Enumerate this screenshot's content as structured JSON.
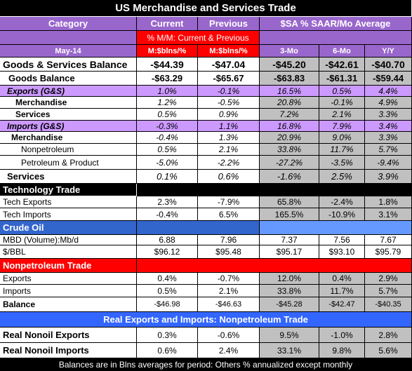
{
  "title": "US Merchandise and Services Trade",
  "header": {
    "category": "Category",
    "current": "Current",
    "previous": "Previous",
    "average": "$SA % SAAR/Mo Average",
    "mom": "% M/M: Current & Previous",
    "period": "May-14",
    "units": [
      "M:$blns/%",
      "M:$blns/%"
    ],
    "averages": [
      "3-Mo",
      "6-Mo",
      "Y/Y"
    ]
  },
  "sections": [
    {
      "rows": [
        [
          "Goods & Services Balance",
          "-$44.39",
          "-$47.04",
          "-$45.20",
          "-$42.61",
          "-$40.70"
        ],
        [
          "Goods Balance",
          "-$63.29",
          "-$65.67",
          "-$63.83",
          "-$61.31",
          "-$59.44"
        ],
        [
          "Exports (G&S)",
          "1.0%",
          "-0.1%",
          "16.5%",
          "0.5%",
          "4.4%"
        ],
        [
          "Merchandise",
          "1.2%",
          "-0.5%",
          "20.8%",
          "-0.1%",
          "4.9%"
        ],
        [
          "Services",
          "0.5%",
          "0.9%",
          "7.2%",
          "2.1%",
          "3.3%"
        ],
        [
          "Imports (G&S)",
          "-0.3%",
          "1.1%",
          "16.8%",
          "7.9%",
          "3.4%"
        ],
        [
          "Merchandise",
          "-0.4%",
          "1.3%",
          "20.9%",
          "9.0%",
          "3.3%"
        ],
        [
          "Nonpetroleum",
          "0.5%",
          "2.1%",
          "33.8%",
          "11.7%",
          "5.7%"
        ],
        [
          "Petroleum & Product",
          "-5.0%",
          "-2.2%",
          "-27.2%",
          "-3.5%",
          "-9.4%"
        ],
        [
          "Services",
          "0.1%",
          "0.6%",
          "-1.6%",
          "2.5%",
          "3.9%"
        ]
      ]
    },
    {
      "title": "Technology Trade",
      "rows": [
        [
          "Tech Exports",
          "2.3%",
          "-7.9%",
          "65.8%",
          "-2.4%",
          "1.8%"
        ],
        [
          "Tech Imports",
          "-0.4%",
          "6.5%",
          "165.5%",
          "-10.9%",
          "3.1%"
        ]
      ]
    },
    {
      "title": "Crude Oil",
      "rows": [
        [
          "MBD (Volume):Mb/d",
          "6.88",
          "7.96",
          "7.37",
          "7.56",
          "7.67"
        ],
        [
          "$/BBL",
          "$96.12",
          "$95.48",
          "$95.17",
          "$93.10",
          "$95.79"
        ]
      ]
    },
    {
      "title": "Nonpetroleum Trade",
      "rows": [
        [
          "Exports",
          "0.4%",
          "-0.7%",
          "12.0%",
          "0.4%",
          "2.9%"
        ],
        [
          "Imports",
          "0.5%",
          "2.1%",
          "33.8%",
          "11.7%",
          "5.7%"
        ],
        [
          "Balance",
          "-$46.98",
          "-$46.63",
          "-$45.28",
          "-$42.47",
          "-$40.35"
        ]
      ]
    },
    {
      "title": "Real Exports and Imports: Nonpetroleum Trade",
      "rows": [
        [
          "Real Nonoil Exports",
          "0.3%",
          "-0.6%",
          "9.5%",
          "-1.0%",
          "2.8%"
        ],
        [
          "Real Nonoil Imports",
          "0.6%",
          "2.4%",
          "33.1%",
          "9.8%",
          "5.6%"
        ]
      ]
    }
  ],
  "footer": "Balances are in Blns averages for period: Others % annualized except monthly"
}
